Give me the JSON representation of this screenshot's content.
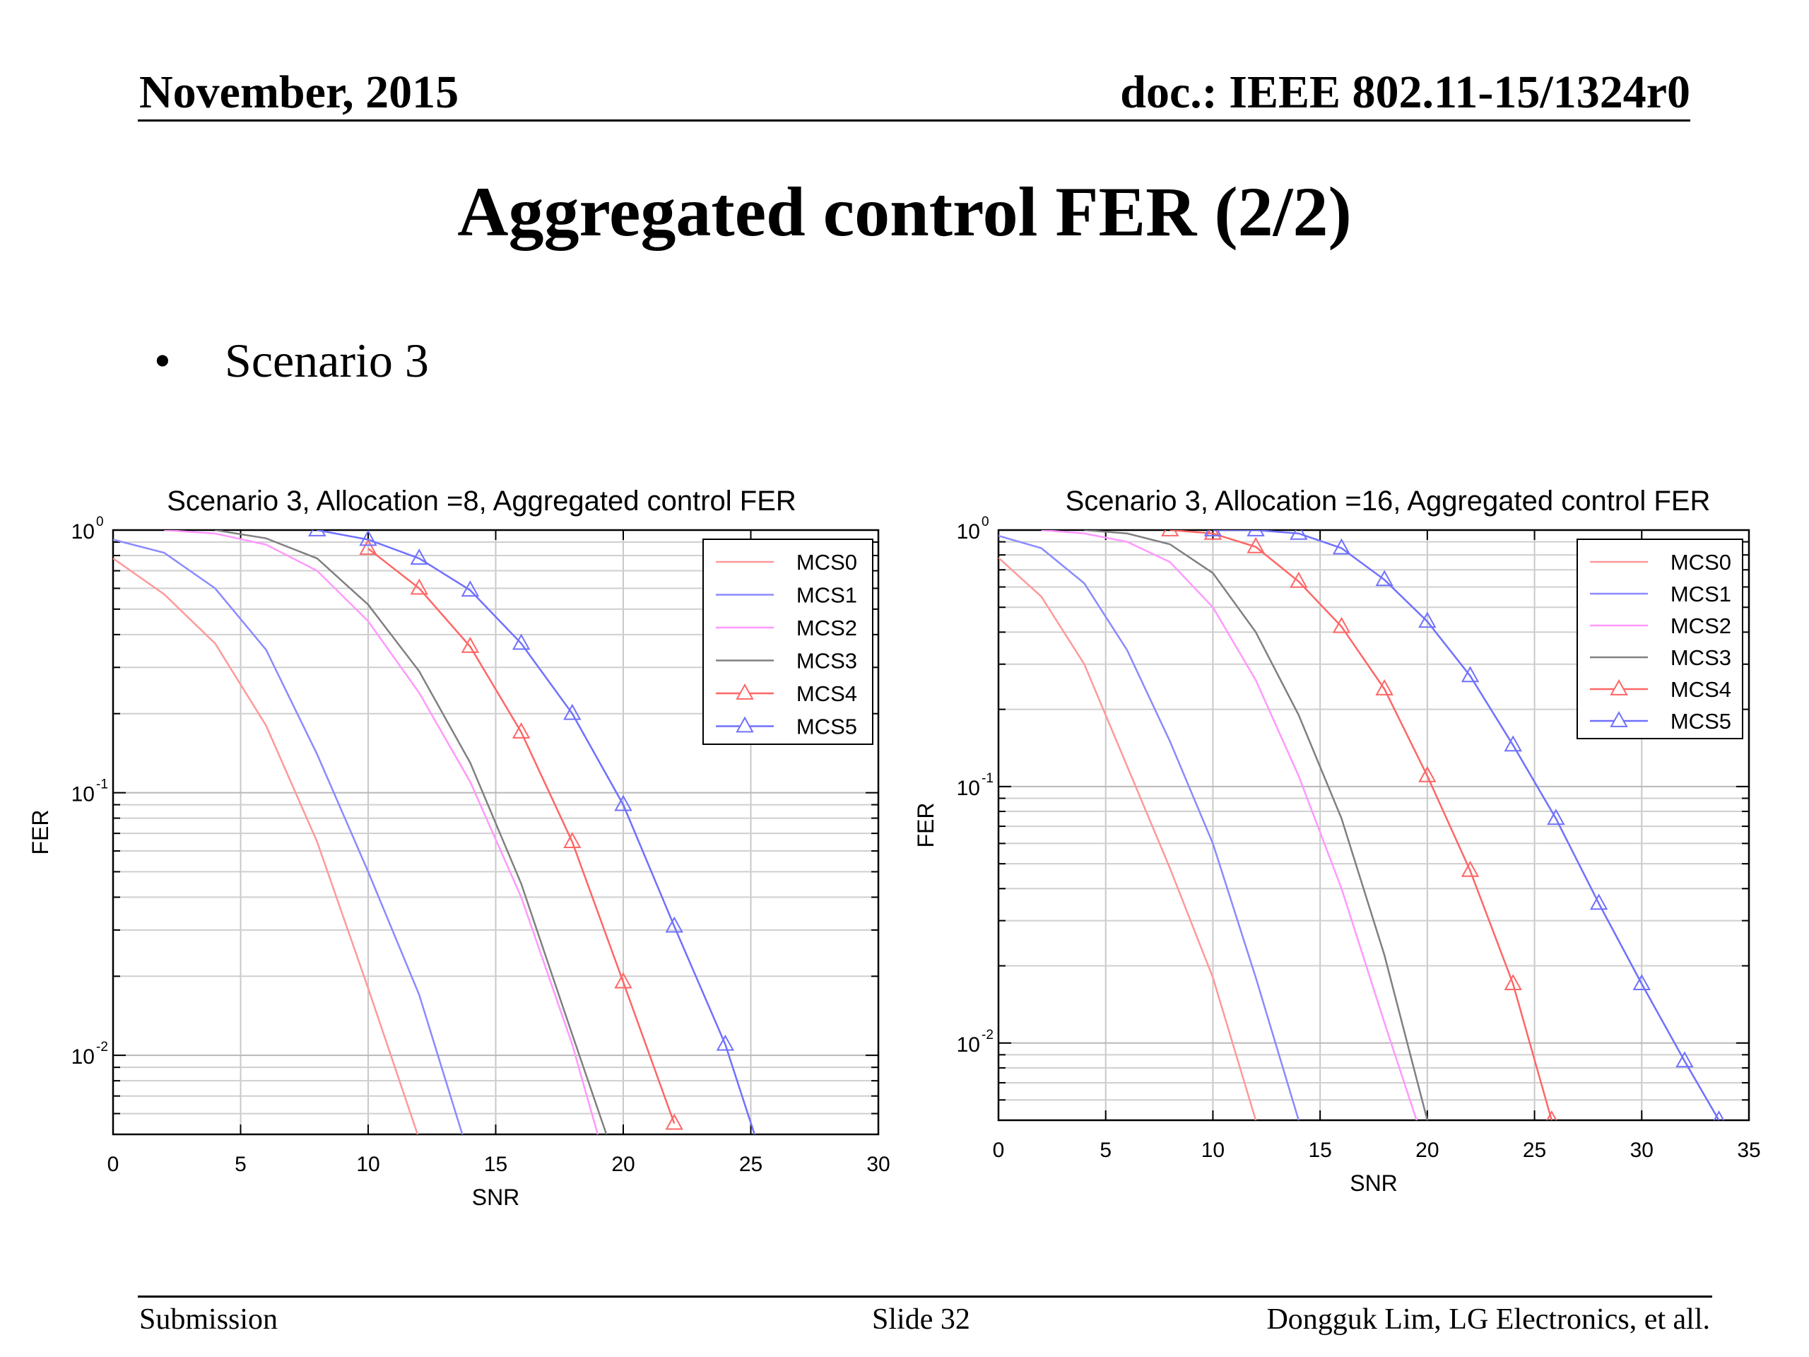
{
  "header": {
    "date": "November, 2015",
    "doc": "doc.: IEEE 802.11-15/1324r0"
  },
  "title": "Aggregated control FER (2/2)",
  "bullet": {
    "symbol": "•",
    "text": "Scenario 3"
  },
  "footer": {
    "left": "Submission",
    "center": "Slide 32",
    "right": "Dongguk Lim, LG Electronics, et all."
  },
  "series_colors": {
    "MCS0": "#ff9999",
    "MCS1": "#8a8aff",
    "MCS2": "#ff99ff",
    "MCS3": "#808080",
    "MCS4": "#ff6666",
    "MCS5": "#7070ff"
  },
  "chart_data": [
    {
      "type": "line",
      "title": "Scenario 3, Allocation =8, Aggregated control FER",
      "xlabel": "SNR",
      "ylabel": "FER",
      "xlim": [
        0,
        30
      ],
      "ylim": [
        0.005,
        1
      ],
      "yscale": "log",
      "xticks": [
        0,
        5,
        10,
        15,
        20,
        25,
        30
      ],
      "yticks": [
        {
          "base": "10",
          "exp": "0",
          "value": 1
        },
        {
          "base": "10",
          "exp": "-1",
          "value": 0.1
        },
        {
          "base": "10",
          "exp": "-2",
          "value": 0.01
        }
      ],
      "grid": true,
      "legend": "top-right",
      "series": [
        {
          "name": "MCS0",
          "marker": "none",
          "x": [
            0,
            2,
            4,
            6,
            8,
            10,
            12
          ],
          "y": [
            0.78,
            0.57,
            0.37,
            0.18,
            0.065,
            0.018,
            0.0048
          ]
        },
        {
          "name": "MCS1",
          "marker": "none",
          "x": [
            0,
            2,
            4,
            6,
            8,
            10,
            12,
            14
          ],
          "y": [
            0.92,
            0.82,
            0.6,
            0.35,
            0.14,
            0.05,
            0.017,
            0.004
          ]
        },
        {
          "name": "MCS2",
          "marker": "none",
          "x": [
            2,
            4,
            6,
            8,
            10,
            12,
            14,
            16,
            18,
            19
          ],
          "y": [
            1,
            0.97,
            0.88,
            0.7,
            0.45,
            0.24,
            0.11,
            0.04,
            0.011,
            0.005
          ]
        },
        {
          "name": "MCS3",
          "marker": "none",
          "x": [
            4,
            6,
            8,
            10,
            12,
            14,
            16,
            18,
            19.5
          ],
          "y": [
            1,
            0.93,
            0.78,
            0.52,
            0.29,
            0.13,
            0.045,
            0.012,
            0.0045
          ]
        },
        {
          "name": "MCS4",
          "marker": "triangle",
          "x": [
            10,
            12,
            14,
            16,
            18,
            20,
            22
          ],
          "y": [
            0.85,
            0.6,
            0.36,
            0.17,
            0.065,
            0.019,
            0.0055
          ]
        },
        {
          "name": "MCS5",
          "marker": "triangle",
          "x": [
            8,
            10,
            12,
            14,
            16,
            18,
            20,
            22,
            24,
            25.3
          ],
          "y": [
            1,
            0.92,
            0.78,
            0.59,
            0.37,
            0.2,
            0.09,
            0.031,
            0.011,
            0.0045
          ]
        }
      ]
    },
    {
      "type": "line",
      "title": "Scenario 3, Allocation =16, Aggregated control FER",
      "xlabel": "SNR",
      "ylabel": "FER",
      "xlim": [
        0,
        35
      ],
      "ylim": [
        0.005,
        1
      ],
      "yscale": "log",
      "xticks": [
        0,
        5,
        10,
        15,
        20,
        25,
        30,
        35
      ],
      "yticks": [
        {
          "base": "10",
          "exp": "0",
          "value": 1
        },
        {
          "base": "10",
          "exp": "-1",
          "value": 0.1
        },
        {
          "base": "10",
          "exp": "-2",
          "value": 0.01
        }
      ],
      "grid": true,
      "legend": "top-right",
      "series": [
        {
          "name": "MCS0",
          "marker": "none",
          "x": [
            0,
            2,
            4,
            6,
            8,
            10,
            12
          ],
          "y": [
            0.78,
            0.55,
            0.3,
            0.12,
            0.048,
            0.018,
            0.005
          ]
        },
        {
          "name": "MCS1",
          "marker": "none",
          "x": [
            0,
            2,
            4,
            6,
            8,
            10,
            12,
            14
          ],
          "y": [
            0.95,
            0.85,
            0.62,
            0.34,
            0.15,
            0.06,
            0.018,
            0.005
          ]
        },
        {
          "name": "MCS2",
          "marker": "none",
          "x": [
            2,
            4,
            6,
            8,
            10,
            12,
            14,
            16,
            18,
            19.5
          ],
          "y": [
            1,
            0.97,
            0.9,
            0.75,
            0.5,
            0.26,
            0.11,
            0.04,
            0.012,
            0.005
          ]
        },
        {
          "name": "MCS3",
          "marker": "none",
          "x": [
            4,
            6,
            8,
            10,
            12,
            14,
            16,
            18,
            20
          ],
          "y": [
            1,
            0.97,
            0.88,
            0.68,
            0.4,
            0.19,
            0.075,
            0.022,
            0.005
          ]
        },
        {
          "name": "MCS4",
          "marker": "triangle",
          "x": [
            8,
            10,
            12,
            14,
            16,
            18,
            20,
            22,
            24,
            25.8
          ],
          "y": [
            1,
            0.97,
            0.86,
            0.63,
            0.42,
            0.24,
            0.11,
            0.047,
            0.017,
            0.005
          ]
        },
        {
          "name": "MCS5",
          "marker": "triangle",
          "x": [
            10,
            12,
            14,
            16,
            18,
            20,
            22,
            24,
            26,
            28,
            30,
            32,
            33.6
          ],
          "y": [
            1,
            1,
            0.97,
            0.85,
            0.64,
            0.44,
            0.27,
            0.145,
            0.075,
            0.035,
            0.017,
            0.0085,
            0.005
          ]
        }
      ]
    }
  ]
}
